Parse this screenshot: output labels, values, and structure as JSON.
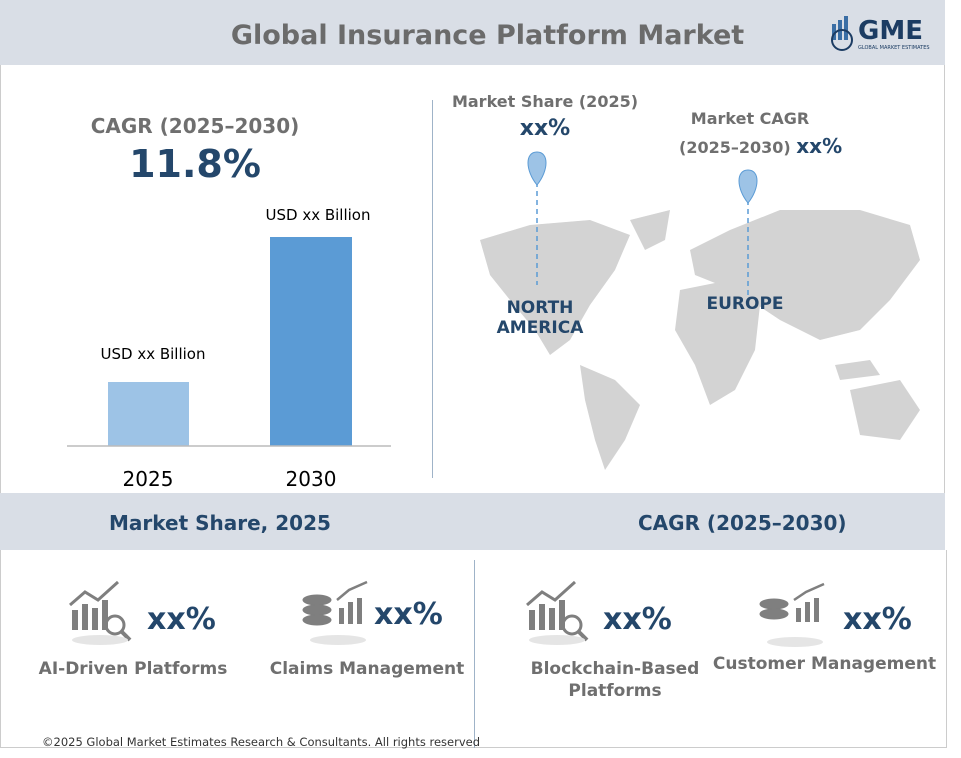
{
  "header": {
    "title": "Global Insurance Platform Market",
    "logo": "GME",
    "logo_sub": "GLOBAL MARKET ESTIMATES"
  },
  "cagr": {
    "label": "CAGR (2025–2030)",
    "value": "11.8%"
  },
  "bars": [
    {
      "label": "USD xx Billion",
      "year": "2025"
    },
    {
      "label": "USD xx Billion",
      "year": "2030"
    }
  ],
  "map": {
    "share_label": "Market Share (2025)",
    "share_value": "xx%",
    "cagr_label_1": "Market CAGR",
    "cagr_label_2": "(2025–2030)",
    "cagr_value": "xx%",
    "regions": [
      "NORTH AMERICA",
      "EUROPE"
    ]
  },
  "sections": {
    "share_title": "Market Share, 2025",
    "cagr_title": "CAGR (2025–2030)"
  },
  "segments": [
    {
      "value": "xx%",
      "label": "AI-Driven Platforms"
    },
    {
      "value": "xx%",
      "label": "Claims Management"
    },
    {
      "value": "xx%",
      "label": "Blockchain-Based Platforms"
    },
    {
      "value": "xx%",
      "label": "Customer Management"
    }
  ],
  "footer": "©2025 Global Market Estimates Research & Consultants. All rights reserved"
}
